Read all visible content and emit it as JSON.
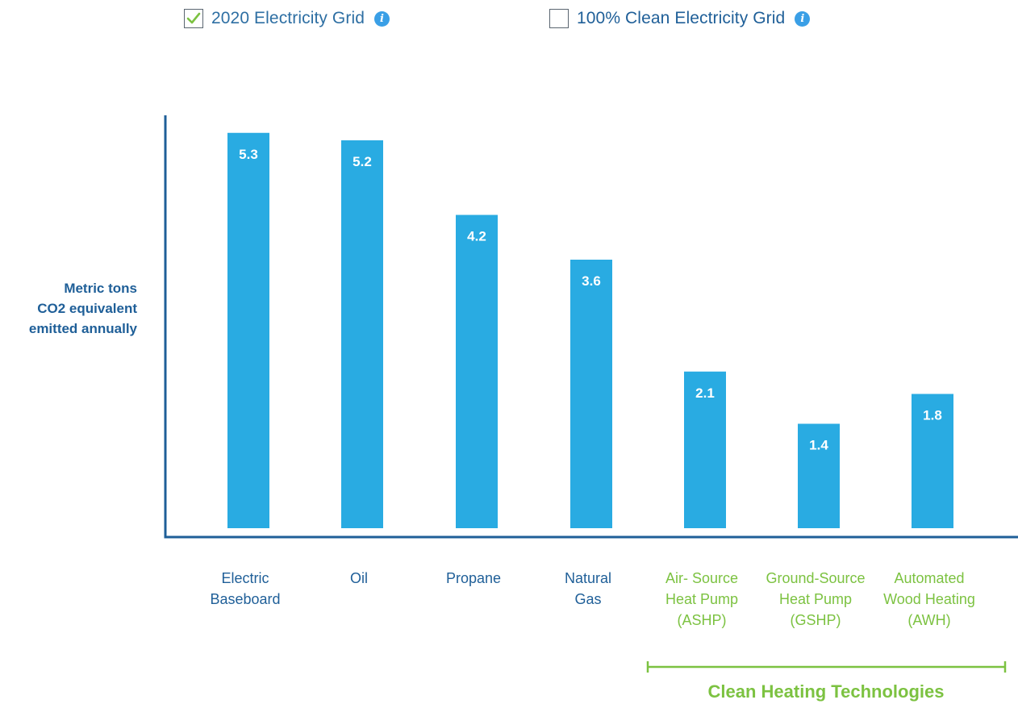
{
  "toggles": [
    {
      "label": "2020 Electricity Grid",
      "checked": true
    },
    {
      "label": "100% Clean Electricity Grid",
      "checked": false
    }
  ],
  "colors": {
    "bar": "#29abe2",
    "axis": "#1f5f98",
    "label_conventional": "#1f5f98",
    "label_clean": "#7cc241",
    "info": "#3a9fe6",
    "check": "#7cc241"
  },
  "chart_data": {
    "type": "bar",
    "ylabel": [
      "Metric tons",
      "CO2 equivalent",
      "emitted annually"
    ],
    "xlabel": "",
    "title": "",
    "ylim": [
      0,
      5.5
    ],
    "grid": false,
    "categories": [
      {
        "lines": [
          "Electric",
          "Baseboard"
        ],
        "group": "conventional"
      },
      {
        "lines": [
          "Oil"
        ],
        "group": "conventional"
      },
      {
        "lines": [
          "Propane"
        ],
        "group": "conventional"
      },
      {
        "lines": [
          "Natural",
          "Gas"
        ],
        "group": "conventional"
      },
      {
        "lines": [
          "Air- Source",
          "Heat Pump",
          "(ASHP)"
        ],
        "group": "clean"
      },
      {
        "lines": [
          "Ground-Source",
          "Heat Pump",
          "(GSHP)"
        ],
        "group": "clean"
      },
      {
        "lines": [
          "Automated",
          "Wood Heating",
          "(AWH)"
        ],
        "group": "clean"
      }
    ],
    "values": [
      5.3,
      5.2,
      4.2,
      3.6,
      2.1,
      1.4,
      1.8
    ],
    "value_labels": [
      "5.3",
      "5.2",
      "4.2",
      "3.6",
      "2.1",
      "1.4",
      "1.8"
    ],
    "group_label": "Clean Heating Technologies"
  }
}
